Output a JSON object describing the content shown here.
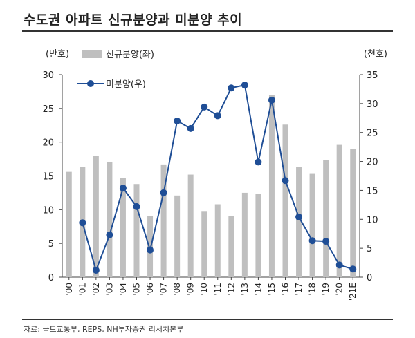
{
  "title": "수도권 아파트 신규분양과 미분양 추이",
  "source": "자료: 국토교통부, REPS, NH투자증권 리서치본부",
  "chart_data": {
    "type": "bar",
    "categories": [
      "'00",
      "'01",
      "'02",
      "'03",
      "'04",
      "'05",
      "'06",
      "'07",
      "'08",
      "'09",
      "'10",
      "'11",
      "'12",
      "'13",
      "'14",
      "'15",
      "'16",
      "'17",
      "'18",
      "'19",
      "'20",
      "'21E"
    ],
    "y_left_unit": "(만호)",
    "y_right_unit": "(천호)",
    "y_left_lim": [
      0,
      30
    ],
    "y_left_ticks": [
      0,
      5,
      10,
      15,
      20,
      25,
      30
    ],
    "y_right_lim": [
      0,
      35
    ],
    "y_right_ticks": [
      0,
      5,
      10,
      15,
      20,
      25,
      30,
      35
    ],
    "series": [
      {
        "name": "신규분양(좌)",
        "type": "bar",
        "axis": "left",
        "color": "#BFBFBF",
        "values": [
          15.6,
          16.3,
          18.0,
          17.1,
          14.7,
          13.8,
          9.1,
          16.7,
          12.1,
          15.2,
          9.8,
          10.8,
          9.1,
          12.5,
          12.3,
          27.0,
          22.6,
          16.3,
          15.3,
          17.4,
          19.6,
          19.0
        ]
      },
      {
        "name": "미분양(우)",
        "type": "line",
        "axis": "right",
        "color": "#1F4E96",
        "values": [
          null,
          9.4,
          1.2,
          7.3,
          15.4,
          12.2,
          4.7,
          14.6,
          27.0,
          25.7,
          29.4,
          27.9,
          32.7,
          33.2,
          19.9,
          30.6,
          16.7,
          10.4,
          6.3,
          6.2,
          2.1,
          1.4
        ]
      }
    ],
    "legend_position": "top-left",
    "grid": false
  }
}
